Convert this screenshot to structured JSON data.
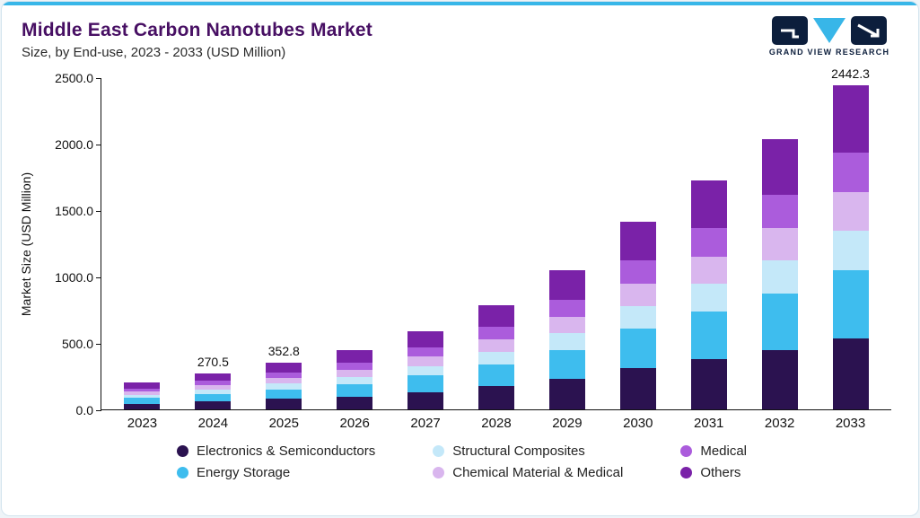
{
  "header": {
    "title": "Middle East Carbon Nanotubes Market",
    "subtitle": "Size, by End-use, 2023 - 2033 (USD Million)",
    "logo_text": "GRAND VIEW RESEARCH"
  },
  "chart_data": {
    "type": "bar",
    "stacked": true,
    "title": "Middle East Carbon Nanotubes Market Size, by End-use, 2023 - 2033 (USD Million)",
    "ylabel": "Market Size (USD Million)",
    "ylim": [
      0,
      2500
    ],
    "yticks": [
      "2500.0",
      "2000.0",
      "1500.0",
      "1000.0",
      "500.0",
      "0.0"
    ],
    "grid": false,
    "legend_position": "bottom",
    "categories": [
      "2023",
      "2024",
      "2025",
      "2026",
      "2027",
      "2028",
      "2029",
      "2030",
      "2031",
      "2032",
      "2033"
    ],
    "series": [
      {
        "name": "Electronics & Semiconductors",
        "color": "#2b1250",
        "values": [
          44,
          60,
          78,
          98,
          130,
          173,
          230,
          311,
          378,
          448,
          537
        ]
      },
      {
        "name": "Energy Storage",
        "color": "#3ebdee",
        "values": [
          42,
          57,
          74,
          93,
          124,
          165,
          219,
          297,
          361,
          427,
          513
        ]
      },
      {
        "name": "Structural Composites",
        "color": "#c4e8f9",
        "values": [
          24,
          32,
          42,
          53,
          71,
          94,
          125,
          170,
          206,
          244,
          293
        ]
      },
      {
        "name": "Chemical Material & Medical",
        "color": "#d9b6ee",
        "values": [
          24,
          32,
          42,
          53,
          71,
          94,
          125,
          170,
          206,
          244,
          293
        ]
      },
      {
        "name": "Medical",
        "color": "#ab5cdc",
        "values": [
          24,
          33,
          43,
          55,
          72,
          96,
          128,
          173,
          211,
          250,
          300
        ]
      },
      {
        "name": "Others",
        "color": "#7a22a8",
        "values": [
          42,
          56.5,
          73.8,
          93,
          122,
          163,
          218,
          294,
          358,
          422,
          506.3
        ]
      }
    ],
    "bar_totals": [
      200,
      270.5,
      352.8,
      445,
      590,
      785,
      1045,
      1415,
      1720,
      2035,
      2442.3
    ],
    "bar_labels": {
      "2024": "270.5",
      "2025": "352.8",
      "2033": "2442.3"
    }
  }
}
